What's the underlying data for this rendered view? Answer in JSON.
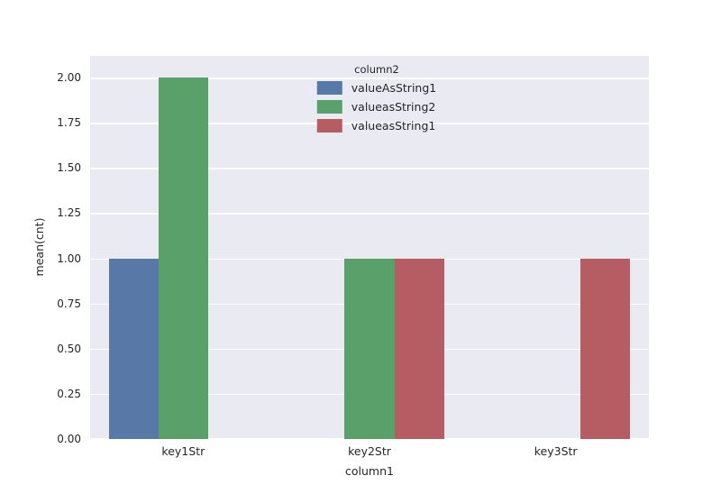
{
  "figure": {
    "background": "#ffffff",
    "plot_background": "#eaeaf2",
    "grid_color": "#ffffff",
    "text_color": "#262626"
  },
  "chart_data": {
    "type": "bar",
    "title": "",
    "xlabel": "column1",
    "ylabel": "mean(cnt)",
    "categories": [
      "key1Str",
      "key2Str",
      "key3Str"
    ],
    "series": [
      {
        "name": "valueAsString1",
        "color": "#5878a8",
        "values": [
          1.0,
          null,
          null
        ]
      },
      {
        "name": "valueasString2",
        "color": "#5aa06a",
        "values": [
          2.0,
          1.0,
          null
        ]
      },
      {
        "name": "valueasString1",
        "color": "#b55d62",
        "values": [
          null,
          1.0,
          1.0
        ]
      }
    ],
    "legend_title": "column2",
    "legend_position": "upper center",
    "ylim": [
      0,
      2.0
    ],
    "yticks": [
      0.0,
      0.25,
      0.5,
      0.75,
      1.0,
      1.25,
      1.5,
      1.75,
      2.0
    ],
    "ytick_labels": [
      "0.00",
      "0.25",
      "0.50",
      "0.75",
      "1.00",
      "1.25",
      "1.50",
      "1.75",
      "2.00"
    ],
    "grid": true,
    "group_width_fraction": 0.8
  }
}
